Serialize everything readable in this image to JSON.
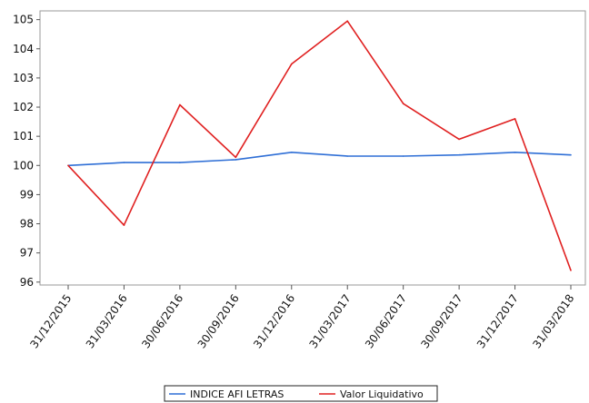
{
  "chart_data": {
    "type": "line",
    "categories": [
      "31/12/2015",
      "31/03/2016",
      "30/06/2016",
      "30/09/2016",
      "31/12/2016",
      "31/03/2017",
      "30/06/2017",
      "30/09/2017",
      "31/12/2017",
      "31/03/2018"
    ],
    "series": [
      {
        "name": "INDICE AFI LETRAS",
        "color": "#2f6fd6",
        "values": [
          100.0,
          100.1,
          100.1,
          100.2,
          100.45,
          100.32,
          100.32,
          100.36,
          100.45,
          100.36
        ]
      },
      {
        "name": "Valor Liquidativo",
        "color": "#e02020",
        "values": [
          100.0,
          97.95,
          102.08,
          100.28,
          103.48,
          104.95,
          102.12,
          100.9,
          101.6,
          96.4
        ]
      }
    ],
    "ylim": [
      95.9,
      105.3
    ],
    "yticks": [
      96,
      97,
      98,
      99,
      100,
      101,
      102,
      103,
      104,
      105
    ],
    "grid": false,
    "legend_position": "bottom-center"
  }
}
